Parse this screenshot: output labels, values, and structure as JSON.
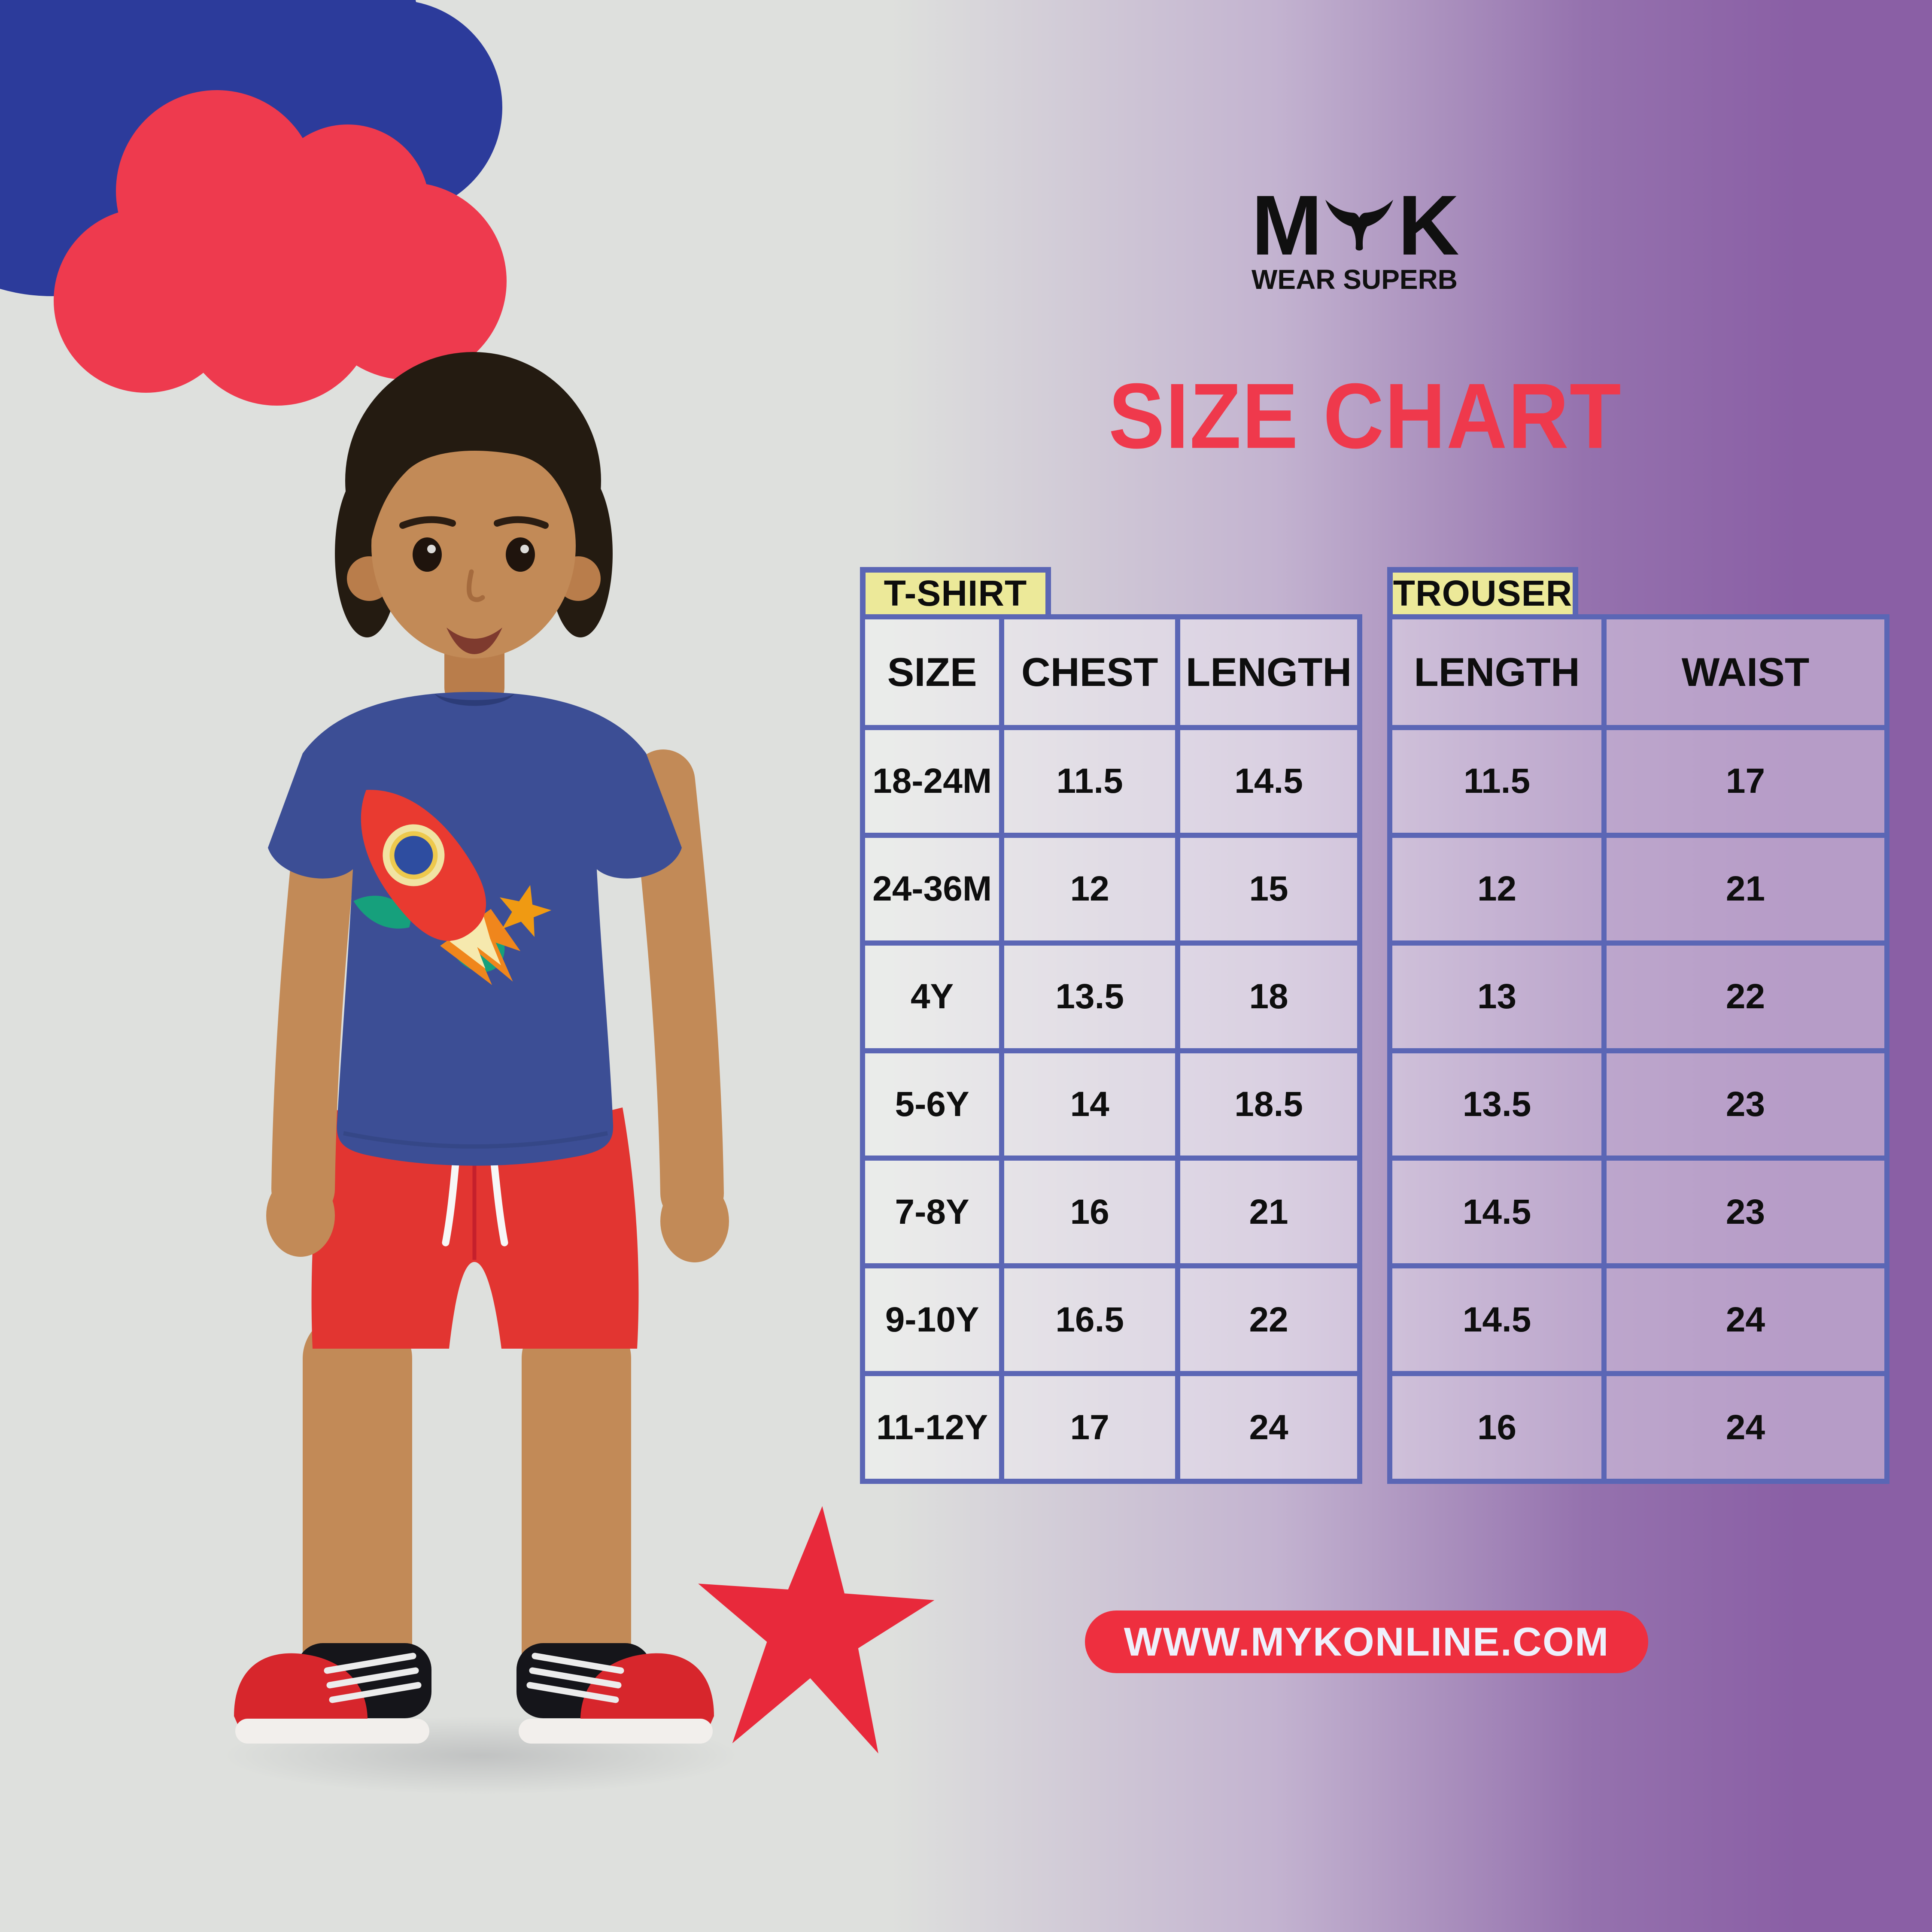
{
  "logo": {
    "m": "M",
    "k": "K",
    "tagline": "WEAR SUPERB"
  },
  "title": "SIZE CHART",
  "website": "WWW.MYKONLINE.COM",
  "tshirt_table": {
    "tab": "T-SHIRT",
    "headers": [
      "SIZE",
      "CHEST",
      "LENGTH"
    ],
    "rows": [
      [
        "18-24M",
        "11.5",
        "14.5"
      ],
      [
        "24-36M",
        "12",
        "15"
      ],
      [
        "4Y",
        "13.5",
        "18"
      ],
      [
        "5-6Y",
        "14",
        "18.5"
      ],
      [
        "7-8Y",
        "16",
        "21"
      ],
      [
        "9-10Y",
        "16.5",
        "22"
      ],
      [
        "11-12Y",
        "17",
        "24"
      ]
    ]
  },
  "trouser_table": {
    "tab": "TROUSER",
    "headers": [
      "LENGTH",
      "WAIST"
    ],
    "rows": [
      [
        "11.5",
        "17"
      ],
      [
        "12",
        "21"
      ],
      [
        "13",
        "22"
      ],
      [
        "13.5",
        "23"
      ],
      [
        "14.5",
        "23"
      ],
      [
        "14.5",
        "24"
      ],
      [
        "16",
        "24"
      ]
    ]
  },
  "colors": {
    "background_gray": "#dee0dd",
    "background_purple": "#8a5fa5",
    "table_border_blue": "#5b66b5",
    "tab_yellow": "#ece999",
    "title_red": "#ef394c",
    "pill_red": "#ee2f3f",
    "star_red": "#e8293b",
    "cloud_red": "#ee3a4e",
    "cloud_blue": "#2c3b9b",
    "logo_black": "#101010"
  }
}
